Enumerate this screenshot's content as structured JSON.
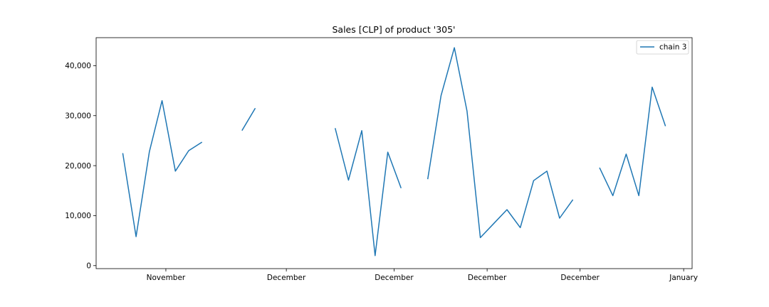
{
  "chart_data": {
    "type": "line",
    "title": "Sales [CLP] of product '305'",
    "xlabel": "",
    "ylabel": "",
    "x_ticks": [
      {
        "label": "November",
        "x": 11
      },
      {
        "label": "December",
        "x": 30
      },
      {
        "label": "December",
        "x": 47
      },
      {
        "label": "December",
        "x": 61.67
      },
      {
        "label": "December",
        "x": 76.33
      },
      {
        "label": "January",
        "x": 92.67
      }
    ],
    "xlim": [
      0,
      94
    ],
    "y_ticks": [
      {
        "label": "0",
        "value": 0
      },
      {
        "label": "10,000",
        "value": 10000
      },
      {
        "label": "20,000",
        "value": 20000
      },
      {
        "label": "30,000",
        "value": 30000
      },
      {
        "label": "40,000",
        "value": 40000
      }
    ],
    "ylim": [
      -600,
      45600
    ],
    "grid": false,
    "legend": {
      "position": "upper-right"
    },
    "colors": {
      "series": "#1f77b4"
    },
    "series": [
      {
        "name": "chain 3",
        "segments": [
          [
            [
              4.2,
              22500
            ],
            [
              6.3,
              5800
            ],
            [
              8.4,
              22800
            ],
            [
              10.4,
              33000
            ],
            [
              12.5,
              18900
            ],
            [
              14.6,
              23000
            ],
            [
              16.7,
              24700
            ]
          ],
          [
            [
              23.0,
              27000
            ],
            [
              25.1,
              31500
            ]
          ],
          [
            [
              37.7,
              27500
            ],
            [
              39.8,
              17100
            ],
            [
              41.9,
              27000
            ],
            [
              44.0,
              2000
            ],
            [
              46.0,
              22700
            ],
            [
              48.1,
              15500
            ]
          ],
          [
            [
              52.3,
              17300
            ],
            [
              54.4,
              34000
            ],
            [
              56.5,
              43600
            ],
            [
              58.5,
              30900
            ],
            [
              60.6,
              5600
            ],
            [
              62.7,
              8400
            ],
            [
              64.8,
              11200
            ],
            [
              66.9,
              7600
            ],
            [
              69.0,
              17000
            ],
            [
              71.1,
              18900
            ],
            [
              73.1,
              9500
            ],
            [
              75.2,
              13200
            ]
          ],
          [
            [
              79.4,
              19600
            ],
            [
              81.5,
              14000
            ],
            [
              83.6,
              22300
            ],
            [
              85.6,
              14000
            ],
            [
              87.7,
              35700
            ],
            [
              89.8,
              27900
            ]
          ]
        ]
      }
    ]
  }
}
